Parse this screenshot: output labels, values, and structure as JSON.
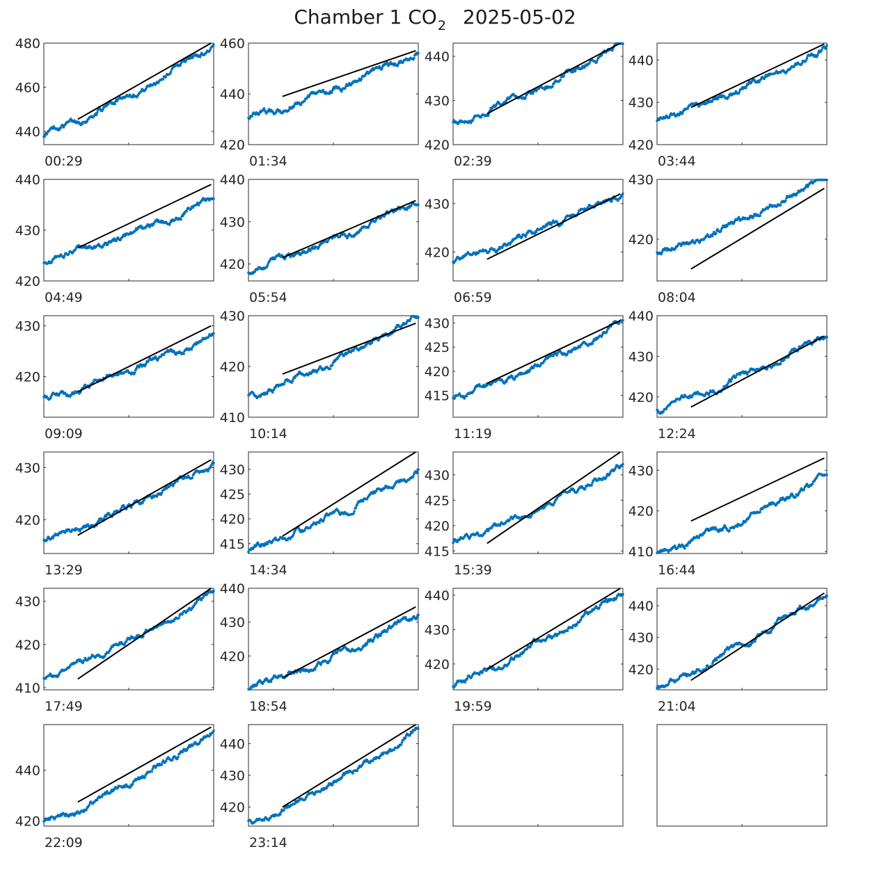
{
  "title": {
    "prefix": "Chamber 1 CO",
    "subscript": "2",
    "date": "2025-05-02"
  },
  "colors": {
    "points": "#0072BD",
    "fit_line": "#000000",
    "axes": "#262626"
  },
  "chart_data": [
    {
      "type": "scatter",
      "label": "00:29",
      "ylim": [
        434,
        480
      ],
      "yticks": [
        440,
        460,
        480
      ],
      "start": 438.5,
      "end": 479.5,
      "fit": [
        445.5,
        480
      ],
      "fit_start": 0.2
    },
    {
      "type": "scatter",
      "label": "01:34",
      "ylim": [
        420,
        460
      ],
      "yticks": [
        420,
        440,
        460
      ],
      "start": 430.5,
      "end": 456.5,
      "fit": [
        439,
        457
      ],
      "fit_start": 0.2
    },
    {
      "type": "scatter",
      "label": "02:39",
      "ylim": [
        420,
        443
      ],
      "yticks": [
        420,
        430,
        440
      ],
      "start": 425,
      "end": 443,
      "fit": [
        427,
        443.5
      ],
      "fit_start": 0.2
    },
    {
      "type": "scatter",
      "label": "03:44",
      "ylim": [
        420,
        444
      ],
      "yticks": [
        420,
        430,
        440
      ],
      "start": 425.8,
      "end": 442.8,
      "fit": [
        428.8,
        443.8
      ],
      "fit_start": 0.2
    },
    {
      "type": "scatter",
      "label": "04:49",
      "ylim": [
        420,
        440
      ],
      "yticks": [
        420,
        430,
        440
      ],
      "start": 424,
      "end": 436,
      "fit": [
        426.5,
        439
      ],
      "fit_start": 0.2
    },
    {
      "type": "scatter",
      "label": "05:54",
      "ylim": [
        416,
        440
      ],
      "yticks": [
        420,
        430,
        440
      ],
      "start": 418.5,
      "end": 435,
      "fit": [
        421.5,
        435
      ],
      "fit_start": 0.2
    },
    {
      "type": "scatter",
      "label": "06:59",
      "ylim": [
        414,
        435
      ],
      "yticks": [
        420,
        430
      ],
      "start": 418,
      "end": 432.5,
      "fit": [
        418.5,
        432
      ],
      "fit_start": 0.2
    },
    {
      "type": "scatter",
      "label": "08:04",
      "ylim": [
        413,
        430
      ],
      "yticks": [
        420,
        430
      ],
      "start": 417.5,
      "end": 430.5,
      "fit": [
        415,
        428.5
      ],
      "fit_start": 0.2
    },
    {
      "type": "scatter",
      "label": "09:09",
      "ylim": [
        412,
        432
      ],
      "yticks": [
        420,
        430
      ],
      "start": 415.5,
      "end": 428.5,
      "fit": [
        417,
        430
      ],
      "fit_start": 0.2
    },
    {
      "type": "scatter",
      "label": "10:14",
      "ylim": [
        410,
        430
      ],
      "yticks": [
        410,
        420,
        430
      ],
      "start": 414,
      "end": 430,
      "fit": [
        418.5,
        428.5
      ],
      "fit_start": 0.2
    },
    {
      "type": "scatter",
      "label": "11:19",
      "ylim": [
        410.5,
        431.5
      ],
      "yticks": [
        415,
        420,
        425,
        430
      ],
      "start": 414.5,
      "end": 430,
      "fit": [
        417.5,
        430.5
      ],
      "fit_start": 0.2
    },
    {
      "type": "scatter",
      "label": "12:24",
      "ylim": [
        415,
        440
      ],
      "yticks": [
        420,
        430,
        440
      ],
      "start": 417,
      "end": 435.5,
      "fit": [
        417.5,
        435
      ],
      "fit_start": 0.2
    },
    {
      "type": "scatter",
      "label": "13:29",
      "ylim": [
        413.5,
        433
      ],
      "yticks": [
        420,
        430
      ],
      "start": 416,
      "end": 431,
      "fit": [
        417,
        431.5
      ],
      "fit_start": 0.2
    },
    {
      "type": "scatter",
      "label": "14:34",
      "ylim": [
        413,
        433.5
      ],
      "yticks": [
        415,
        420,
        425,
        430
      ],
      "start": 413.5,
      "end": 430,
      "fit": [
        416.5,
        433.5
      ],
      "fit_start": 0.2
    },
    {
      "type": "scatter",
      "label": "15:39",
      "ylim": [
        414.5,
        434.5
      ],
      "yticks": [
        415,
        420,
        425,
        430
      ],
      "start": 416.5,
      "end": 432,
      "fit": [
        416.5,
        434.5
      ],
      "fit_start": 0.2
    },
    {
      "type": "scatter",
      "label": "16:44",
      "ylim": [
        409.5,
        434.5
      ],
      "yticks": [
        410,
        420,
        430
      ],
      "start": 409.5,
      "end": 429,
      "fit": [
        417.5,
        433
      ],
      "fit_start": 0.2
    },
    {
      "type": "scatter",
      "label": "17:49",
      "ylim": [
        409.5,
        433
      ],
      "yticks": [
        410,
        420,
        430
      ],
      "start": 412.5,
      "end": 431.5,
      "fit": [
        412,
        433
      ],
      "fit_start": 0.2
    },
    {
      "type": "scatter",
      "label": "18:54",
      "ylim": [
        410,
        440
      ],
      "yticks": [
        420,
        430,
        440
      ],
      "start": 410.5,
      "end": 432,
      "fit": [
        413.5,
        434.5
      ],
      "fit_start": 0.2
    },
    {
      "type": "scatter",
      "label": "19:59",
      "ylim": [
        412.5,
        442
      ],
      "yticks": [
        420,
        430,
        440
      ],
      "start": 414,
      "end": 441,
      "fit": [
        418.5,
        442
      ],
      "fit_start": 0.2
    },
    {
      "type": "scatter",
      "label": "21:04",
      "ylim": [
        413.5,
        445.5
      ],
      "yticks": [
        420,
        430,
        440
      ],
      "start": 414,
      "end": 445,
      "fit": [
        416.5,
        444
      ],
      "fit_start": 0.2
    },
    {
      "type": "scatter",
      "label": "22:09",
      "ylim": [
        418,
        458
      ],
      "yticks": [
        420,
        440
      ],
      "start": 419,
      "end": 455.5,
      "fit": [
        427.5,
        457
      ],
      "fit_start": 0.2
    },
    {
      "type": "scatter",
      "label": "23:14",
      "ylim": [
        414,
        446
      ],
      "yticks": [
        420,
        430,
        440
      ],
      "start": 415,
      "end": 444.5,
      "fit": [
        420,
        446
      ],
      "fit_start": 0.2
    },
    {
      "type": "empty",
      "label": ""
    },
    {
      "type": "empty",
      "label": ""
    }
  ]
}
